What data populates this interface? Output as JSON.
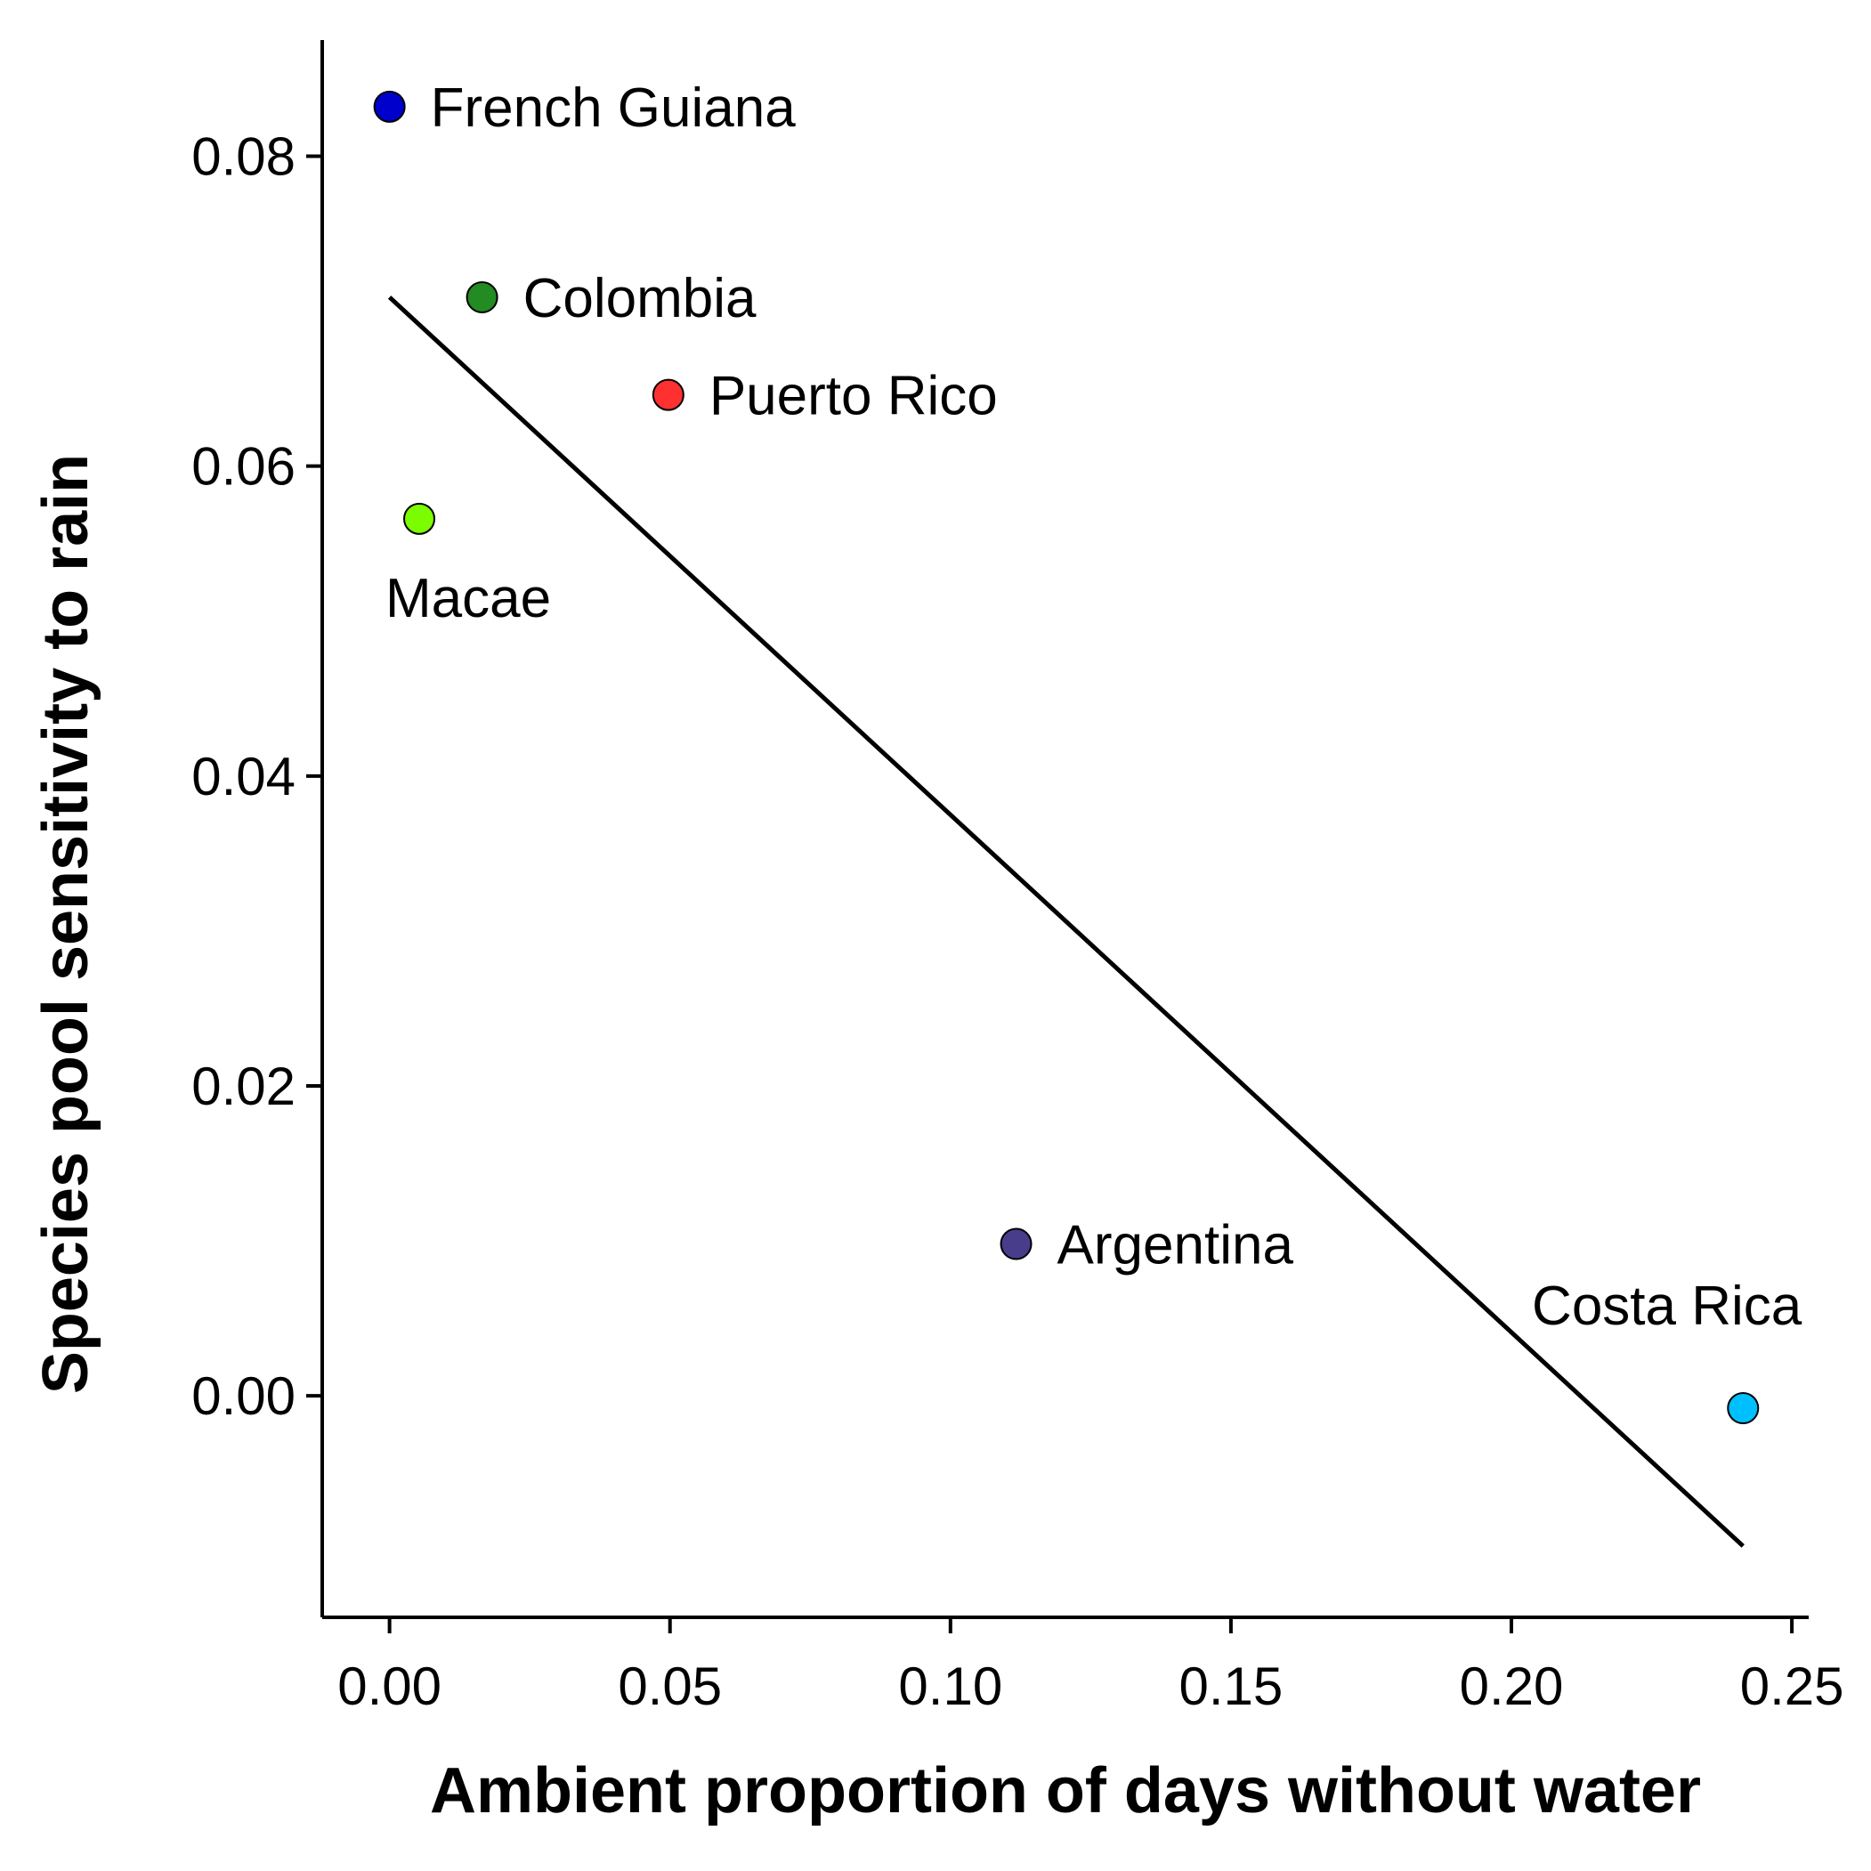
{
  "chart_data": {
    "type": "scatter",
    "title": "",
    "xlabel": "Ambient proportion of days without water",
    "ylabel": "Species pool sensitivity to rain",
    "xlim": [
      -0.012,
      0.253
    ],
    "ylim": [
      -0.0143,
      0.0875
    ],
    "xticks": [
      {
        "value": 0.0,
        "label": "0.00"
      },
      {
        "value": 0.05,
        "label": "0.05"
      },
      {
        "value": 0.1,
        "label": "0.10"
      },
      {
        "value": 0.15,
        "label": "0.15"
      },
      {
        "value": 0.2,
        "label": "0.20"
      },
      {
        "value": 0.25,
        "label": "0.25"
      }
    ],
    "yticks": [
      {
        "value": 0.0,
        "label": "0.00"
      },
      {
        "value": 0.02,
        "label": "0.02"
      },
      {
        "value": 0.04,
        "label": "0.04"
      },
      {
        "value": 0.06,
        "label": "0.06"
      },
      {
        "value": 0.08,
        "label": "0.08"
      }
    ],
    "grid": false,
    "legend": "none",
    "points": [
      {
        "label": "French Guiana",
        "x": 0.0,
        "y": 0.0832,
        "color": "#0000CD",
        "label_pos": "right"
      },
      {
        "label": "Colombia",
        "x": 0.0165,
        "y": 0.0709,
        "color": "#228B22",
        "label_pos": "right"
      },
      {
        "label": "Puerto Rico",
        "x": 0.0497,
        "y": 0.0646,
        "color": "#FF3030",
        "label_pos": "right"
      },
      {
        "label": "Macae",
        "x": 0.0053,
        "y": 0.0566,
        "color": "#7CFC00",
        "label_pos": "below"
      },
      {
        "label": "Argentina",
        "x": 0.1117,
        "y": 0.0098,
        "color": "#483D8B",
        "label_pos": "right"
      },
      {
        "label": "Costa Rica",
        "x": 0.2413,
        "y": -0.0008,
        "color": "#00BFFF",
        "label_pos": "above-left"
      }
    ],
    "fit_line": {
      "x": [
        0.0,
        0.2413
      ],
      "y": [
        0.0709,
        -0.0097
      ],
      "color": "#000000"
    }
  }
}
